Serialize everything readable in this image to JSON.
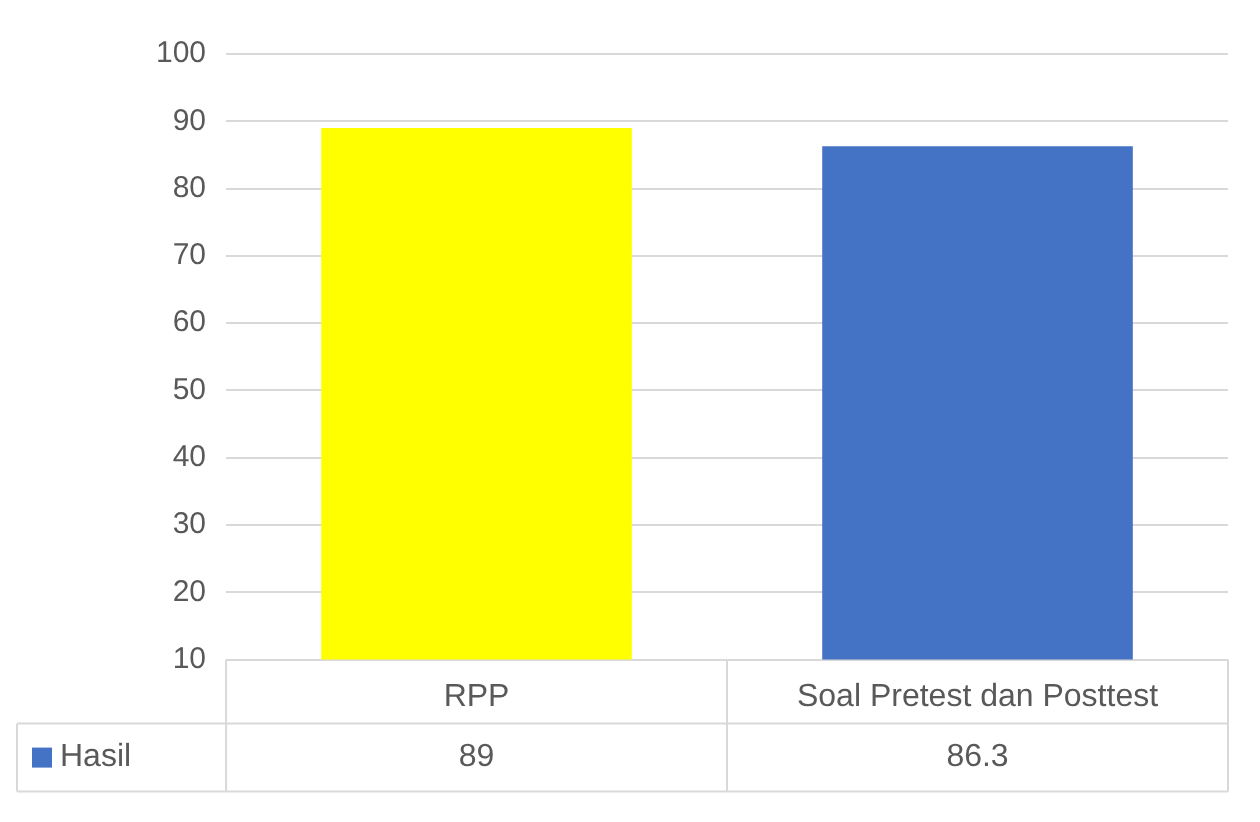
{
  "chart_data": {
    "type": "bar",
    "categories": [
      "RPP",
      "Soal Pretest dan Posttest"
    ],
    "series": [
      {
        "name": "Hasil",
        "color": "#4472c4",
        "colors": [
          "#ffff00",
          "#4472c4"
        ],
        "values": [
          89,
          86.3
        ]
      }
    ],
    "ylim": [
      10,
      100
    ],
    "yticks": [
      10,
      20,
      30,
      40,
      50,
      60,
      70,
      80,
      90,
      100
    ],
    "grid": "y",
    "legend": "bottom",
    "data_labels": true
  }
}
